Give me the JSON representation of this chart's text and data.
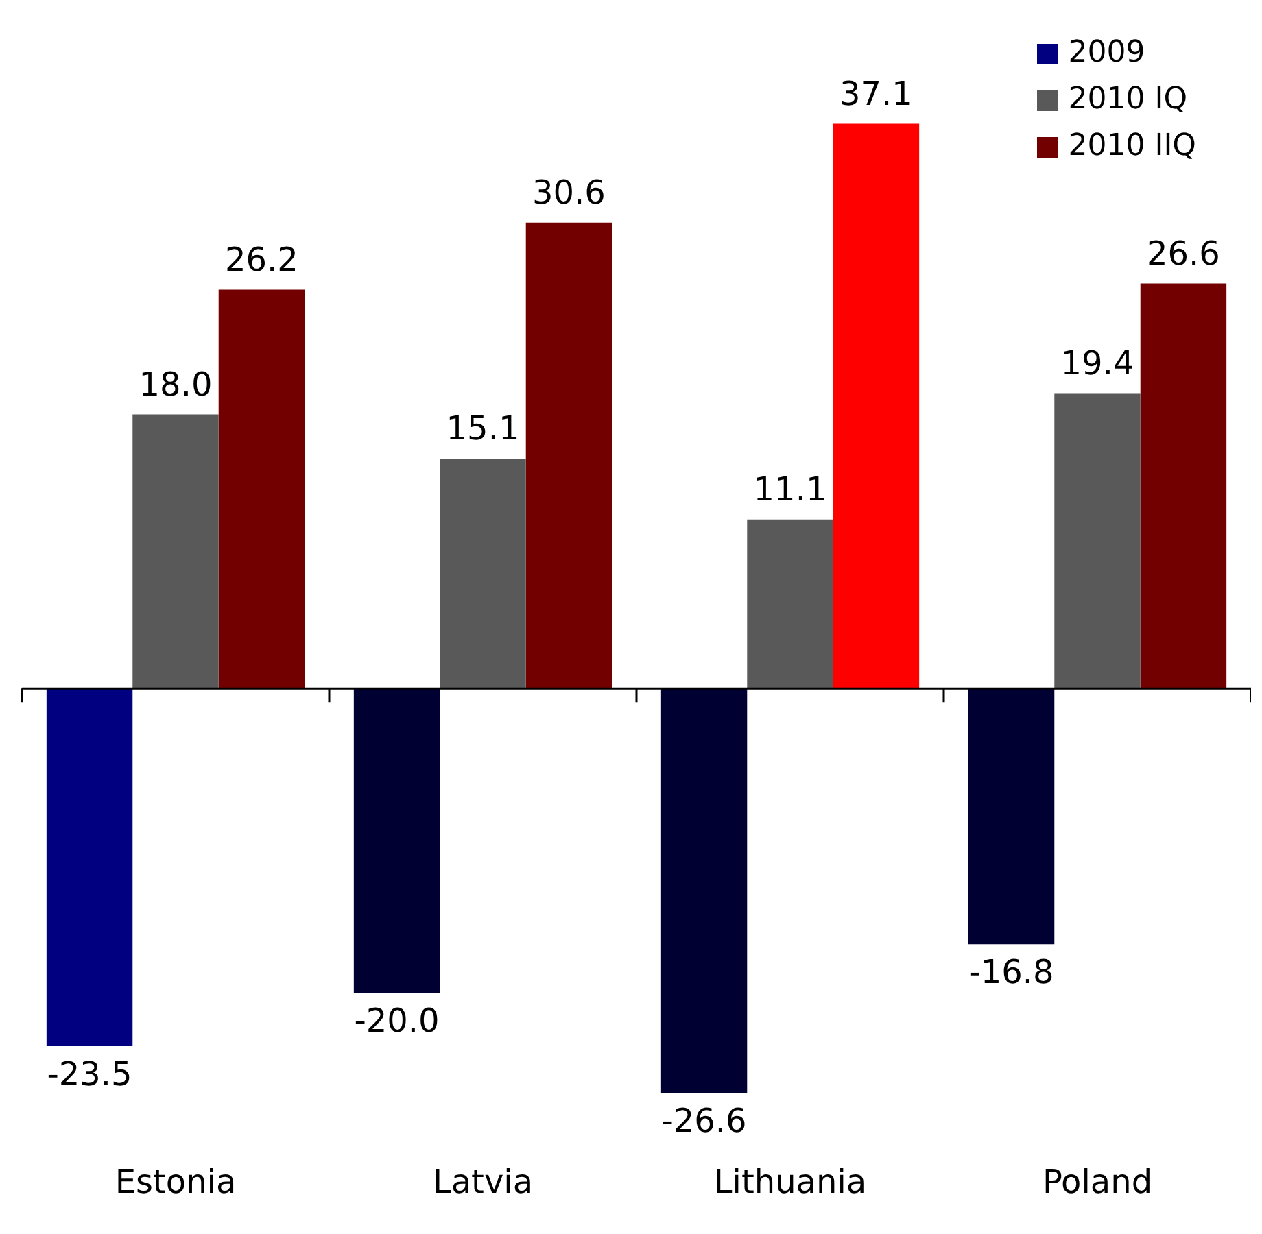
{
  "chart_data": {
    "type": "bar",
    "categories": [
      "Estonia",
      "Latvia",
      "Lithuania",
      "Poland"
    ],
    "series": [
      {
        "name": "2009",
        "color": "#000080",
        "colors": [
          "#000080",
          "#000033",
          "#000033",
          "#000033"
        ],
        "values": [
          -23.5,
          -20.0,
          -26.6,
          -16.8
        ],
        "value_labels": [
          "-23.5",
          "-20.0",
          "-26.6",
          "-16.8"
        ]
      },
      {
        "name": "2010 IQ",
        "color": "#595959",
        "values": [
          18.0,
          15.1,
          11.1,
          19.4
        ],
        "value_labels": [
          "18.0",
          "15.1",
          "11.1",
          "19.4"
        ]
      },
      {
        "name": "2010 IIQ",
        "color": "#730000",
        "colors": [
          "#730000",
          "#730000",
          "#ff0000",
          "#730000"
        ],
        "values": [
          26.2,
          30.6,
          37.1,
          26.6
        ],
        "value_labels": [
          "26.2",
          "30.6",
          "37.1",
          "26.6"
        ]
      }
    ],
    "grid": false,
    "legend": "top right"
  }
}
